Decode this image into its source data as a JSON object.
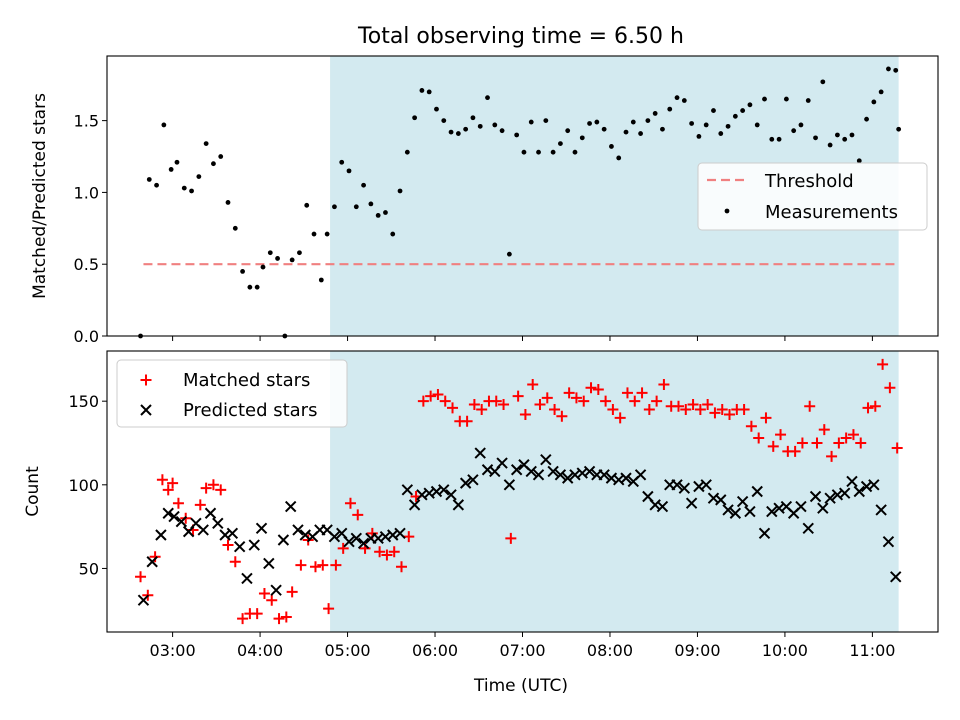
{
  "chart_data": [
    {
      "type": "scatter",
      "title": "Total observing time = 6.50 h",
      "xlabel": "",
      "ylabel": "Matched/Predicted stars",
      "xlim": [
        "02:15",
        "11:45"
      ],
      "ylim": [
        0,
        1.95
      ],
      "yticks": [
        0.0,
        0.5,
        1.0,
        1.5
      ],
      "ytick_labels": [
        "0.0",
        "0.5",
        "1.0",
        "1.5"
      ],
      "xticks": [
        "03:00",
        "04:00",
        "05:00",
        "06:00",
        "07:00",
        "08:00",
        "09:00",
        "10:00",
        "11:00"
      ],
      "shaded_interval": [
        "04:48",
        "11:18"
      ],
      "shade_color": "#d3eaf0",
      "legend_position": "center-right",
      "series": [
        {
          "name": "Threshold",
          "style": "dashed-line",
          "color": "#f08080",
          "x": [
            "02:40",
            "11:18"
          ],
          "y": [
            0.5,
            0.5
          ]
        },
        {
          "name": "Measurements",
          "style": "dots",
          "color": "#000000",
          "x": [
            "02:38",
            "02:44",
            "02:49",
            "02:54",
            "02:59",
            "03:03",
            "03:08",
            "03:13",
            "03:18",
            "03:23",
            "03:28",
            "03:33",
            "03:38",
            "03:43",
            "03:48",
            "03:53",
            "03:58",
            "04:02",
            "04:07",
            "04:12",
            "04:17",
            "04:22",
            "04:27",
            "04:32",
            "04:37",
            "04:42",
            "04:46",
            "04:51",
            "04:56",
            "05:01",
            "05:06",
            "05:11",
            "05:16",
            "05:21",
            "05:26",
            "05:31",
            "05:36",
            "05:41",
            "05:46",
            "05:51",
            "05:56",
            "06:01",
            "06:06",
            "06:11",
            "06:16",
            "06:21",
            "06:26",
            "06:31",
            "06:36",
            "06:41",
            "06:46",
            "06:51",
            "06:56",
            "07:01",
            "07:06",
            "07:11",
            "07:16",
            "07:21",
            "07:26",
            "07:31",
            "07:36",
            "07:41",
            "07:46",
            "07:51",
            "07:56",
            "08:01",
            "08:06",
            "08:11",
            "08:16",
            "08:21",
            "08:26",
            "08:31",
            "08:36",
            "08:41",
            "08:46",
            "08:51",
            "08:56",
            "09:01",
            "09:06",
            "09:11",
            "09:16",
            "09:21",
            "09:26",
            "09:31",
            "09:36",
            "09:41",
            "09:46",
            "09:51",
            "09:56",
            "10:01",
            "10:06",
            "10:11",
            "10:16",
            "10:21",
            "10:26",
            "10:31",
            "10:36",
            "10:41",
            "10:46",
            "10:51",
            "10:56",
            "11:01",
            "11:06",
            "11:11",
            "11:16"
          ],
          "y": [
            0.0,
            1.09,
            1.05,
            1.47,
            1.16,
            1.21,
            1.03,
            1.01,
            1.11,
            1.34,
            1.2,
            1.25,
            0.93,
            0.75,
            0.45,
            0.34,
            0.34,
            0.48,
            0.58,
            0.54,
            0.0,
            0.53,
            0.58,
            0.91,
            0.71,
            0.39,
            0.71,
            0.9,
            1.21,
            1.15,
            0.9,
            1.05,
            0.92,
            0.84,
            0.86,
            0.71,
            1.01,
            1.28,
            1.52,
            1.71,
            1.7,
            1.58,
            1.5,
            1.42,
            1.41,
            1.44,
            1.52,
            1.46,
            1.66,
            1.47,
            1.43,
            0.57,
            1.4,
            1.28,
            1.49,
            1.28,
            1.5,
            1.28,
            1.34,
            1.43,
            1.28,
            1.38,
            1.48,
            1.49,
            1.44,
            1.32,
            1.24,
            1.42,
            1.49,
            1.41,
            1.5,
            1.55,
            1.44,
            1.58,
            1.66,
            1.64,
            1.48,
            1.39,
            1.47,
            1.57,
            1.41,
            1.46,
            1.53,
            1.57,
            1.61,
            1.47,
            1.65,
            1.37,
            1.37,
            1.65,
            1.43,
            1.47,
            1.64,
            1.38,
            1.77,
            1.33,
            1.4,
            1.37,
            1.4,
            1.22,
            1.51,
            1.63,
            1.7,
            1.86,
            1.85
          ]
        }
      ],
      "extra_points": [
        {
          "x": "11:18",
          "y": 1.44
        }
      ]
    },
    {
      "type": "scatter",
      "title": "",
      "xlabel": "Time (UTC)",
      "ylabel": "Count",
      "xlim": [
        "02:15",
        "11:45"
      ],
      "ylim": [
        12,
        180
      ],
      "yticks": [
        50,
        100,
        150
      ],
      "ytick_labels": [
        "50",
        "100",
        "150"
      ],
      "xticks": [
        "03:00",
        "04:00",
        "05:00",
        "06:00",
        "07:00",
        "08:00",
        "09:00",
        "10:00",
        "11:00"
      ],
      "xtick_labels": [
        "03:00",
        "04:00",
        "05:00",
        "06:00",
        "07:00",
        "08:00",
        "09:00",
        "10:00",
        "11:00"
      ],
      "shaded_interval": [
        "04:48",
        "11:18"
      ],
      "shade_color": "#d3eaf0",
      "legend_position": "upper-left",
      "series": [
        {
          "name": "Matched stars",
          "marker": "plus",
          "color": "#ff0000",
          "x": [
            "02:38",
            "02:43",
            "02:48",
            "02:53",
            "02:57",
            "03:00",
            "03:04",
            "03:09",
            "03:14",
            "03:19",
            "03:23",
            "03:28",
            "03:33",
            "03:38",
            "03:43",
            "03:48",
            "03:53",
            "03:58",
            "04:03",
            "04:08",
            "04:13",
            "04:18",
            "04:22",
            "04:28",
            "04:33",
            "04:38",
            "04:43",
            "04:47",
            "04:52",
            "04:57",
            "05:02",
            "05:07",
            "05:12",
            "05:17",
            "05:22",
            "05:27",
            "05:32",
            "05:37",
            "05:42",
            "05:47",
            "05:52",
            "05:57",
            "06:02",
            "06:07",
            "06:12",
            "06:17",
            "06:22",
            "06:27",
            "06:32",
            "06:37",
            "06:42",
            "06:47",
            "06:52",
            "06:57",
            "07:02",
            "07:07",
            "07:12",
            "07:17",
            "07:22",
            "07:27",
            "07:32",
            "07:37",
            "07:42",
            "07:47",
            "07:52",
            "07:57",
            "08:02",
            "08:07",
            "08:12",
            "08:17",
            "08:22",
            "08:27",
            "08:32",
            "08:37",
            "08:42",
            "08:47",
            "08:52",
            "08:57",
            "09:02",
            "09:07",
            "09:12",
            "09:17",
            "09:22",
            "09:27",
            "09:32",
            "09:37",
            "09:42",
            "09:47",
            "09:52",
            "09:57",
            "10:02",
            "10:07",
            "10:12",
            "10:17",
            "10:22",
            "10:27",
            "10:32",
            "10:37",
            "10:42",
            "10:47",
            "10:52",
            "10:57",
            "11:02",
            "11:07",
            "11:12",
            "11:17"
          ],
          "y": [
            45,
            34,
            57,
            103,
            97,
            101,
            89,
            80,
            73,
            88,
            98,
            100,
            97,
            64,
            54,
            20,
            23,
            23,
            35,
            31,
            20,
            21,
            36,
            52,
            67,
            51,
            52,
            26,
            52,
            62,
            89,
            82,
            62,
            71,
            60,
            58,
            60,
            51,
            69,
            93,
            150,
            153,
            154,
            150,
            146,
            138,
            138,
            148,
            145,
            150,
            150,
            148,
            68,
            153,
            142,
            160,
            148,
            152,
            145,
            141,
            155,
            152,
            150,
            158,
            157,
            150,
            145,
            140,
            155,
            150,
            155,
            145,
            150,
            160,
            147,
            147,
            145,
            148,
            145,
            148,
            143,
            145,
            142,
            145,
            145,
            135,
            128,
            140,
            123,
            130,
            120,
            120,
            125,
            147,
            125,
            133,
            117,
            125,
            128,
            130,
            125,
            146,
            147,
            172,
            158,
            122
          ]
        },
        {
          "name": "Predicted stars",
          "marker": "x",
          "color": "#000000",
          "x": [
            "02:40",
            "02:46",
            "02:52",
            "02:57",
            "03:01",
            "03:06",
            "03:11",
            "03:16",
            "03:21",
            "03:26",
            "03:31",
            "03:36",
            "03:41",
            "03:46",
            "03:51",
            "03:56",
            "04:01",
            "04:06",
            "04:11",
            "04:16",
            "04:21",
            "04:26",
            "04:31",
            "04:36",
            "04:41",
            "04:46",
            "04:51",
            "04:56",
            "05:01",
            "05:06",
            "05:11",
            "05:16",
            "05:21",
            "05:26",
            "05:31",
            "05:36",
            "05:41",
            "05:46",
            "05:51",
            "05:56",
            "06:01",
            "06:06",
            "06:11",
            "06:16",
            "06:21",
            "06:26",
            "06:31",
            "06:36",
            "06:41",
            "06:46",
            "06:51",
            "06:56",
            "07:01",
            "07:06",
            "07:11",
            "07:16",
            "07:21",
            "07:26",
            "07:31",
            "07:36",
            "07:41",
            "07:46",
            "07:51",
            "07:56",
            "08:01",
            "08:06",
            "08:11",
            "08:16",
            "08:21",
            "08:26",
            "08:31",
            "08:36",
            "08:41",
            "08:46",
            "08:51",
            "08:56",
            "09:01",
            "09:06",
            "09:11",
            "09:16",
            "09:21",
            "09:26",
            "09:31",
            "09:36",
            "09:41",
            "09:46",
            "09:51",
            "09:56",
            "10:01",
            "10:06",
            "10:11",
            "10:16",
            "10:21",
            "10:26",
            "10:31",
            "10:36",
            "10:41",
            "10:46",
            "10:51",
            "10:56",
            "11:01",
            "11:06",
            "11:11",
            "11:16"
          ],
          "y": [
            31,
            54,
            70,
            83,
            81,
            78,
            72,
            77,
            73,
            83,
            77,
            70,
            71,
            63,
            44,
            64,
            74,
            53,
            37,
            67,
            87,
            73,
            70,
            69,
            73,
            73,
            69,
            71,
            66,
            68,
            65,
            68,
            68,
            69,
            70,
            71,
            97,
            88,
            94,
            95,
            96,
            97,
            94,
            88,
            101,
            103,
            119,
            109,
            108,
            113,
            100,
            109,
            112,
            108,
            106,
            115,
            108,
            106,
            104,
            106,
            107,
            108,
            106,
            106,
            104,
            103,
            104,
            102,
            106,
            93,
            88,
            87,
            100,
            100,
            98,
            89,
            99,
            100,
            92,
            91,
            85,
            83,
            90,
            84,
            96,
            71,
            84,
            86,
            87,
            83,
            87,
            74,
            93,
            86,
            92,
            94,
            95,
            102,
            96,
            99,
            100,
            85,
            66,
            45
          ]
        }
      ]
    }
  ]
}
